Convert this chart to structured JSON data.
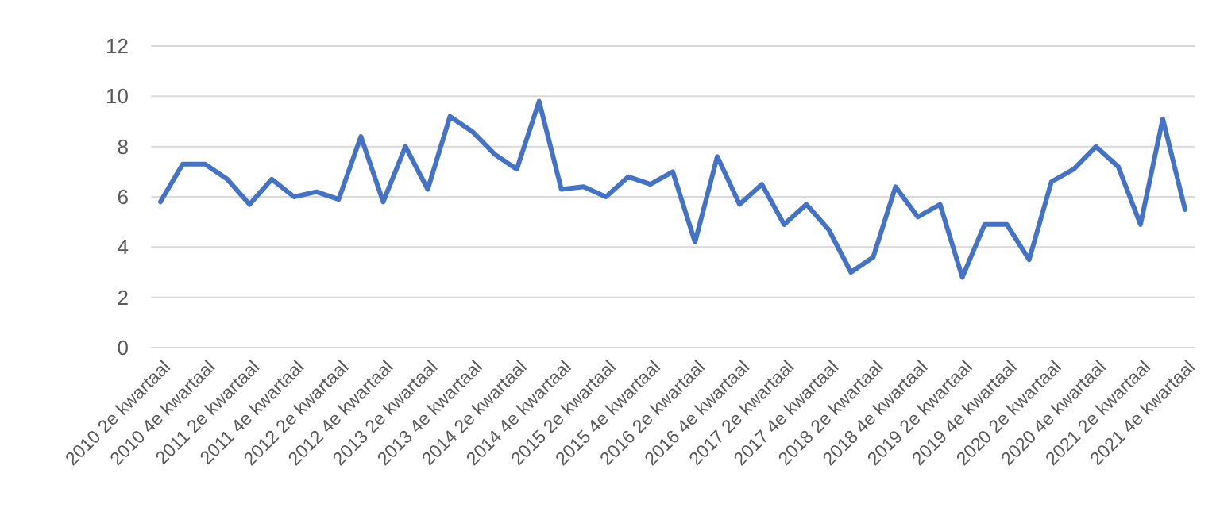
{
  "chart_data": {
    "type": "line",
    "categories": [
      "2010 2e kwartaal",
      null,
      "2010 4e kwartaal",
      null,
      "2011 2e kwartaal",
      null,
      "2011 4e kwartaal",
      null,
      "2012 2e kwartaal",
      null,
      "2012 4e kwartaal",
      null,
      "2013 2e kwartaal",
      null,
      "2013 4e kwartaal",
      null,
      "2014 2e kwartaal",
      null,
      "2014 4e kwartaal",
      null,
      "2015 2e kwartaal",
      null,
      "2015 4e kwartaal",
      null,
      "2016 2e kwartaal",
      null,
      "2016 4e kwartaal",
      null,
      "2017 2e kwartaal",
      null,
      "2017 4e kwartaal",
      null,
      "2018 2e kwartaal",
      null,
      "2018 4e kwartaal",
      null,
      "2019 2e kwartaal",
      null,
      "2019 4e kwartaal",
      null,
      "2020 2e kwartaal",
      null,
      "2020 4e kwartaal",
      null,
      "2021 2e kwartaal",
      null,
      "2021 4e kwartaal"
    ],
    "series": [
      {
        "color": "#4472c4",
        "values": [
          5.8,
          7.3,
          7.3,
          6.7,
          5.7,
          6.7,
          6.0,
          6.2,
          5.9,
          8.4,
          5.8,
          8.0,
          6.3,
          9.2,
          8.6,
          7.7,
          7.1,
          9.8,
          6.3,
          6.4,
          6.0,
          6.8,
          6.5,
          7.0,
          4.2,
          7.6,
          5.7,
          6.5,
          4.9,
          5.7,
          4.7,
          3.0,
          3.6,
          6.4,
          5.2,
          5.7,
          2.8,
          4.9,
          4.9,
          3.5,
          6.6,
          7.1,
          8.0,
          7.2,
          4.9,
          9.1,
          5.5
        ]
      }
    ],
    "ylim": [
      0,
      12
    ],
    "yticks": [
      0,
      2,
      4,
      6,
      8,
      10,
      12
    ],
    "grid": "y",
    "marker": "none",
    "line_style": "solid"
  }
}
